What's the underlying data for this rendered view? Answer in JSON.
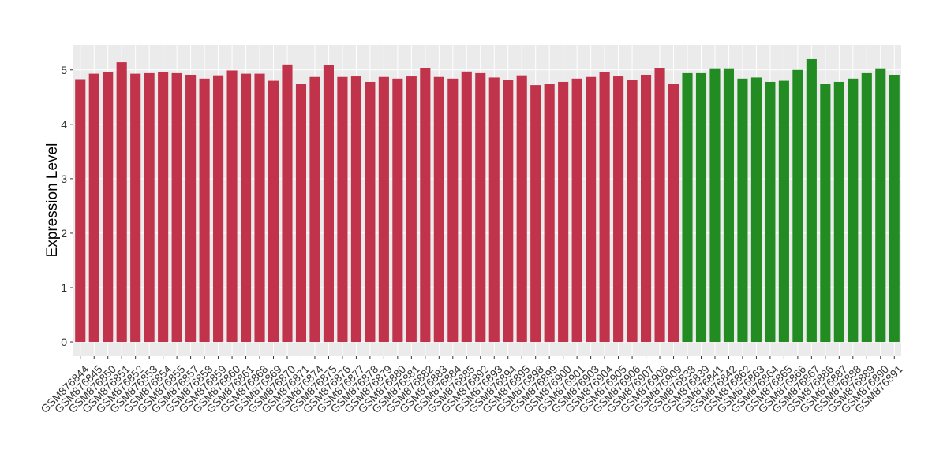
{
  "chart_data": {
    "type": "bar",
    "y_label": "Expression Level",
    "categories": [
      "GSM876844",
      "GSM876845",
      "GSM876850",
      "GSM876851",
      "GSM876852",
      "GSM876853",
      "GSM876854",
      "GSM876855",
      "GSM876857",
      "GSM876858",
      "GSM876859",
      "GSM876860",
      "GSM876861",
      "GSM876868",
      "GSM876869",
      "GSM876870",
      "GSM876871",
      "GSM876874",
      "GSM876875",
      "GSM876876",
      "GSM876877",
      "GSM876878",
      "GSM876879",
      "GSM876880",
      "GSM876881",
      "GSM876882",
      "GSM876883",
      "GSM876884",
      "GSM876885",
      "GSM876892",
      "GSM876893",
      "GSM876894",
      "GSM876895",
      "GSM876898",
      "GSM876899",
      "GSM876900",
      "GSM876901",
      "GSM876903",
      "GSM876904",
      "GSM876905",
      "GSM876906",
      "GSM876907",
      "GSM876908",
      "GSM876909",
      "GSM876838",
      "GSM876839",
      "GSM876841",
      "GSM876842",
      "GSM876862",
      "GSM876863",
      "GSM876864",
      "GSM876865",
      "GSM876866",
      "GSM876867",
      "GSM876886",
      "GSM876887",
      "GSM876888",
      "GSM876889",
      "GSM876890",
      "GSM876891"
    ],
    "series": [
      {
        "color": "#c0334a",
        "values": [
          4.83,
          4.93,
          4.96,
          5.14,
          4.93,
          4.94,
          4.96,
          4.94,
          4.91,
          4.84,
          4.9,
          4.99,
          4.93,
          4.93,
          4.8,
          5.1,
          4.75,
          4.87,
          5.09,
          4.87,
          4.88,
          4.78,
          4.87,
          4.84,
          4.88,
          5.04,
          4.87,
          4.84,
          4.97,
          4.94,
          4.86,
          4.81,
          4.9,
          4.72,
          4.74,
          4.78,
          4.84,
          4.87,
          4.96,
          4.88,
          4.81,
          4.91,
          5.04,
          4.74,
          null,
          null,
          null,
          null,
          null,
          null,
          null,
          null,
          null,
          null,
          null,
          null,
          null,
          null,
          null,
          null
        ]
      },
      {
        "color": "#228b22",
        "values": [
          null,
          null,
          null,
          null,
          null,
          null,
          null,
          null,
          null,
          null,
          null,
          null,
          null,
          null,
          null,
          null,
          null,
          null,
          null,
          null,
          null,
          null,
          null,
          null,
          null,
          null,
          null,
          null,
          null,
          null,
          null,
          null,
          null,
          null,
          null,
          null,
          null,
          null,
          null,
          null,
          null,
          null,
          null,
          null,
          4.94,
          4.94,
          5.03,
          5.03,
          4.84,
          4.86,
          4.78,
          4.8,
          5.0,
          5.2,
          4.75,
          4.78,
          4.84,
          4.94,
          5.03,
          4.91
        ]
      }
    ],
    "ylim": [
      -0.26,
      5.46
    ],
    "yticks": [
      0,
      1,
      2,
      3,
      4,
      5
    ],
    "grid": true
  }
}
